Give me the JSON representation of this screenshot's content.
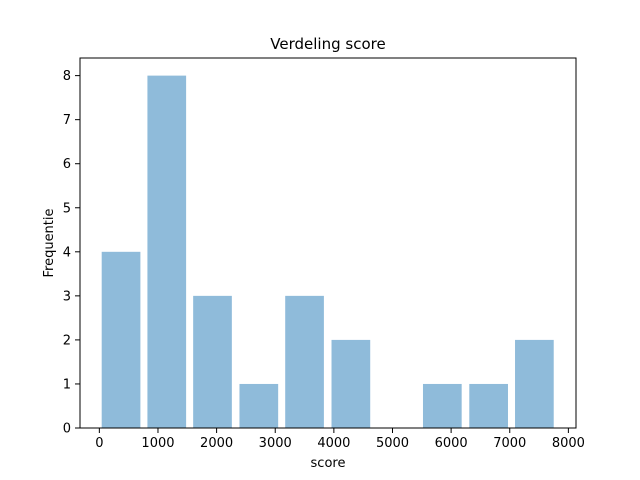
{
  "chart_data": {
    "type": "bar",
    "title": "Verdeling score",
    "xlabel": "score",
    "ylabel": "Frequentie",
    "bins": [
      {
        "start": 40,
        "end": 700,
        "count": 4
      },
      {
        "start": 820,
        "end": 1480,
        "count": 8
      },
      {
        "start": 1600,
        "end": 2260,
        "count": 3
      },
      {
        "start": 2390,
        "end": 3050,
        "count": 1
      },
      {
        "start": 3170,
        "end": 3830,
        "count": 3
      },
      {
        "start": 3960,
        "end": 4620,
        "count": 2
      },
      {
        "start": 4740,
        "end": 5400,
        "count": 0
      },
      {
        "start": 5520,
        "end": 6180,
        "count": 1
      },
      {
        "start": 6310,
        "end": 6970,
        "count": 1
      },
      {
        "start": 7090,
        "end": 7750,
        "count": 2
      }
    ],
    "xlim": [
      -330,
      8130
    ],
    "ylim": [
      0,
      8.4
    ],
    "xticks": [
      0,
      1000,
      2000,
      3000,
      4000,
      5000,
      6000,
      7000,
      8000
    ],
    "yticks": [
      0,
      1,
      2,
      3,
      4,
      5,
      6,
      7,
      8
    ],
    "bar_color": "#8fbbda",
    "grid": false,
    "legend": "none"
  }
}
